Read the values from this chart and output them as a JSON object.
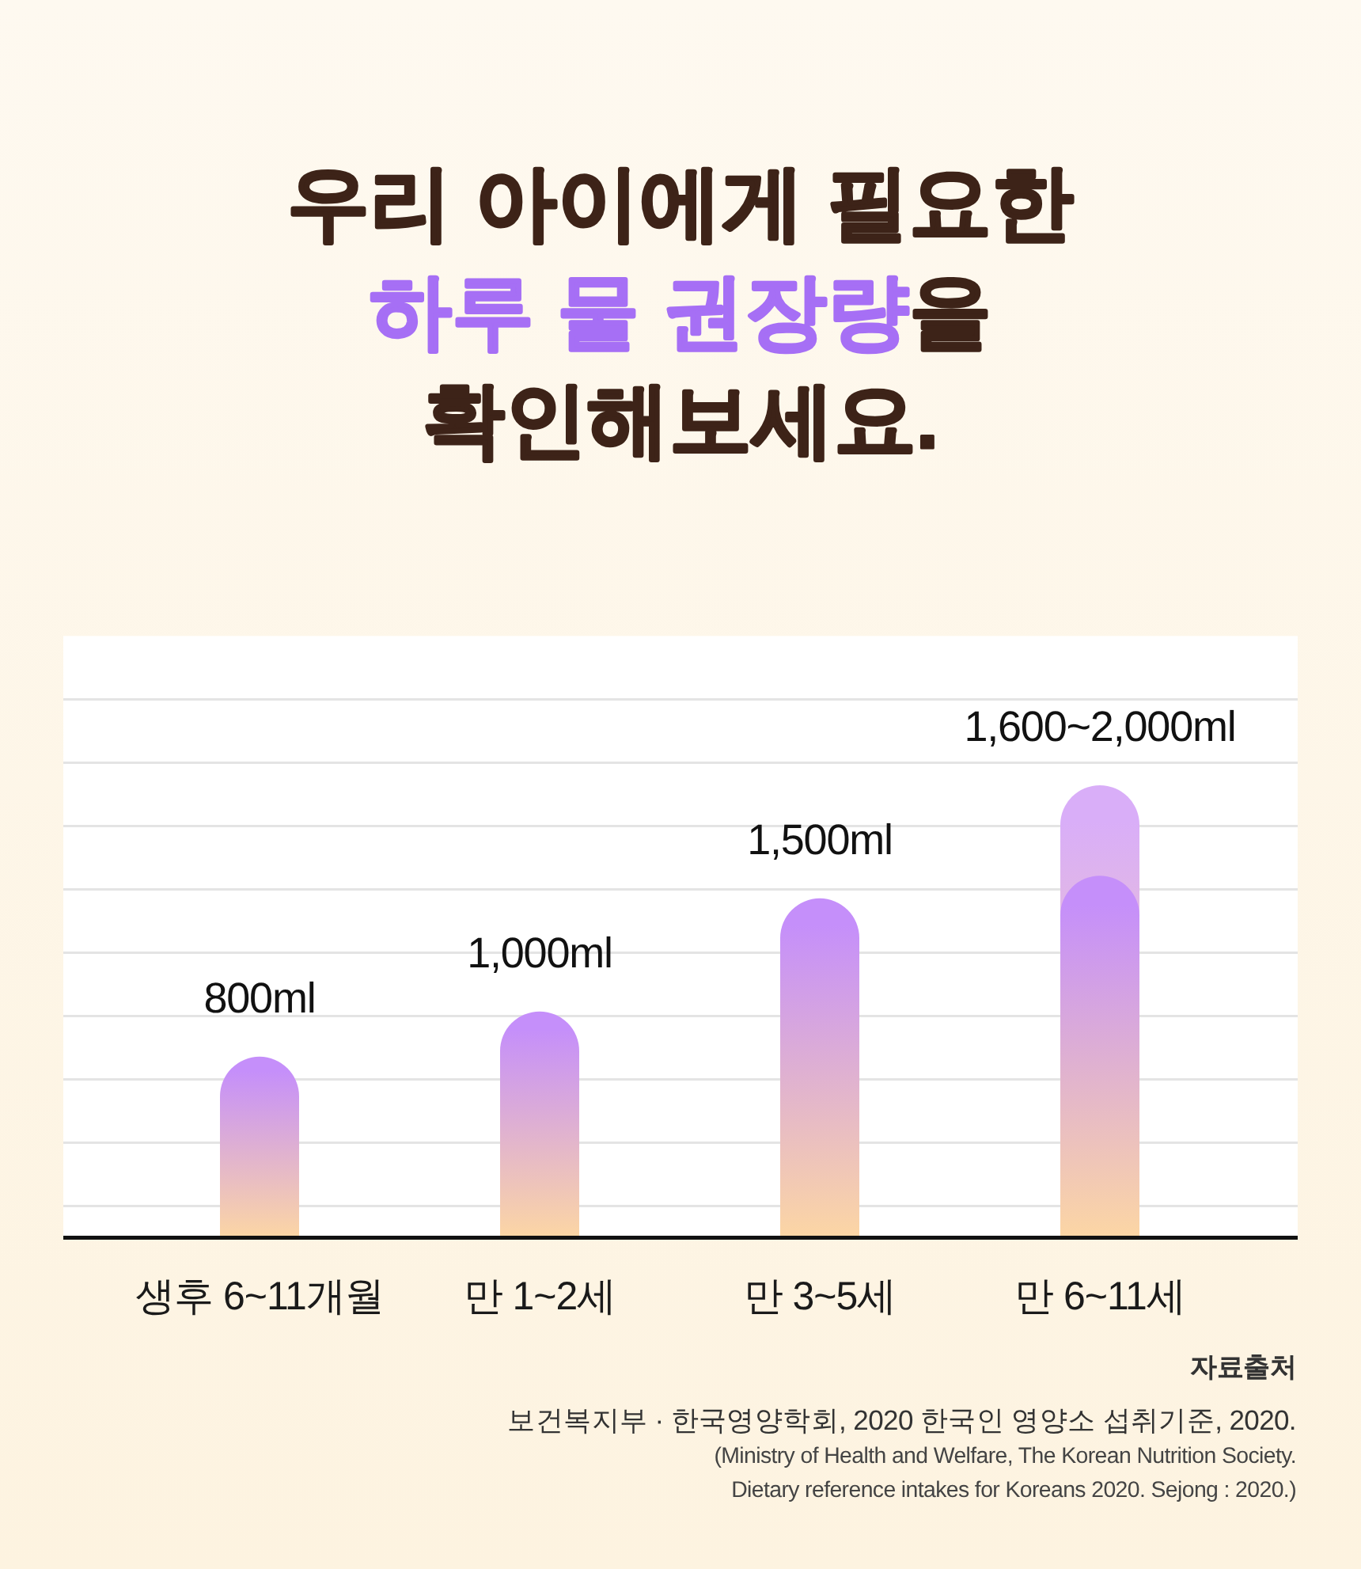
{
  "chart_data": {
    "type": "bar",
    "title": "우리 아이에게 필요한\n하루 물 권장량을\n확인해보세요.",
    "categories": [
      "생후 6~11개월",
      "만 1~2세",
      "만 3~5세",
      "만 6~11세"
    ],
    "series": [
      {
        "color": "#d9aef8",
        "values": [
          null,
          null,
          null,
          2000
        ],
        "value_labels": [
          null,
          null,
          null,
          "1,600~2,000ml"
        ]
      },
      {
        "color": "#c58ffa",
        "values": [
          800,
          1000,
          1500,
          1600
        ],
        "value_labels": [
          "800ml",
          "1,000ml",
          "1,500ml",
          null
        ]
      }
    ],
    "ylim": [
      0,
      2660
    ],
    "yticks": [
      {
        "value": 140,
        "label": null
      },
      {
        "value": 420,
        "label": null
      },
      {
        "value": 700,
        "label": null
      },
      {
        "value": 980,
        "label": null
      },
      {
        "value": 1260,
        "label": null
      },
      {
        "value": 1540,
        "label": null
      },
      {
        "value": 1820,
        "label": null
      },
      {
        "value": 2100,
        "label": null
      },
      {
        "value": 2380,
        "label": null
      }
    ],
    "grid": "y",
    "tick_labels": "x",
    "annotations": [
      "자료출처",
      "보건복지부 · 한국영양학회, 2020 한국인 영양소 섭취기준, 2020.",
      "(Ministry of Health and Welfare, The Korean Nutrition Society.",
      "Dietary reference intakes for Koreans 2020. Sejong : 2020.)"
    ]
  }
}
